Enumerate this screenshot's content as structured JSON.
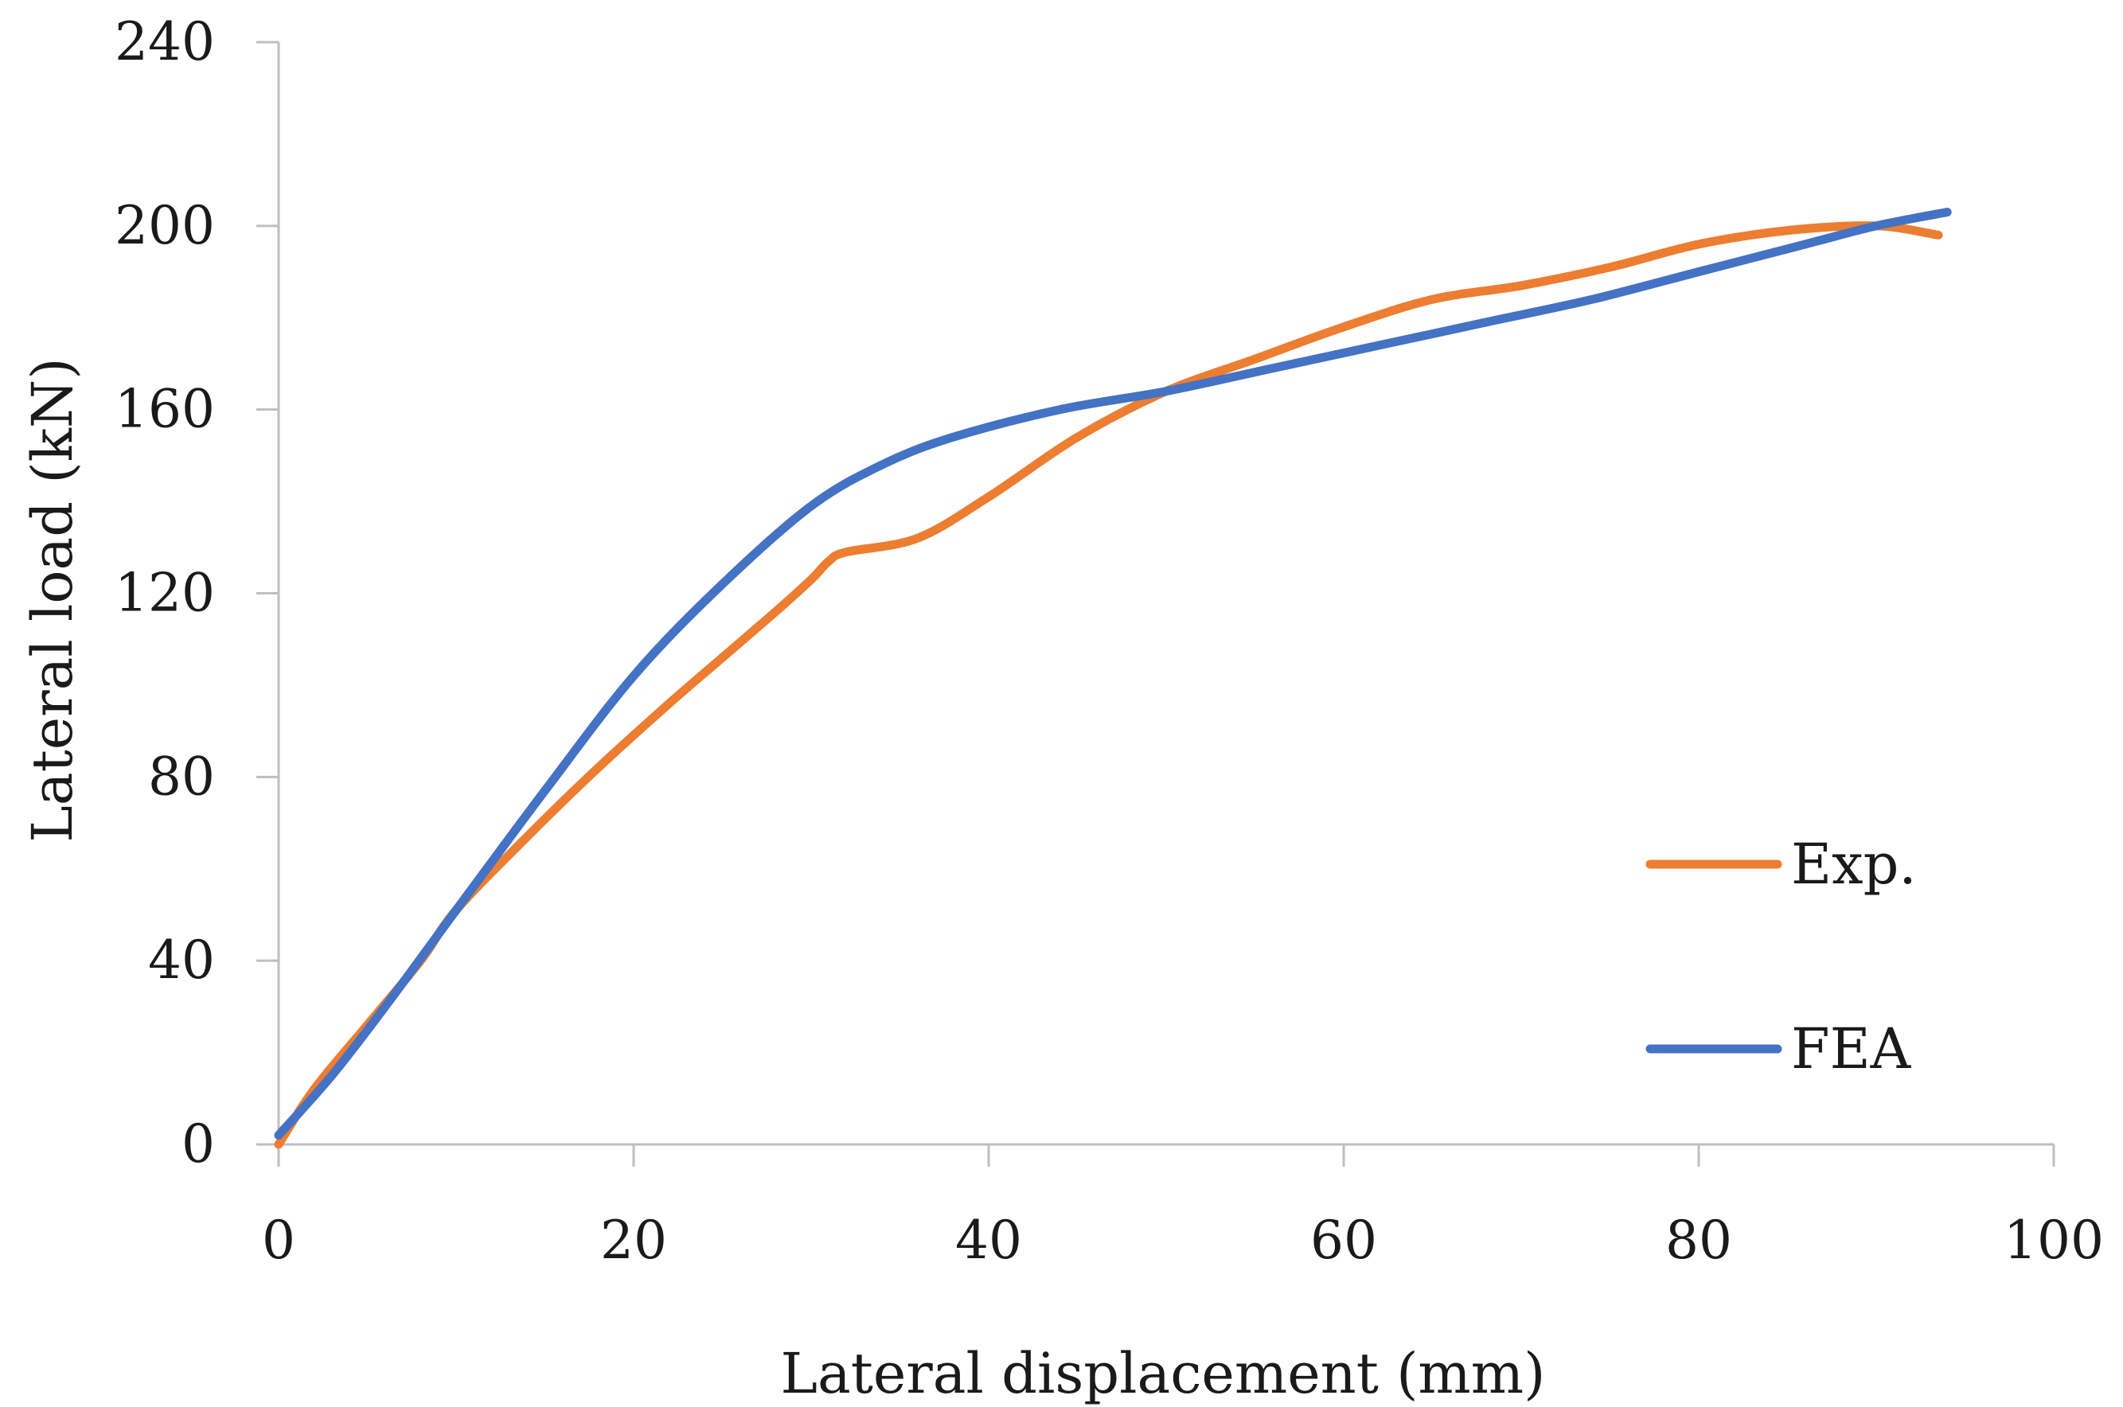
{
  "chart_data": {
    "type": "line",
    "title": "",
    "xlabel": "Lateral displacement (mm)",
    "ylabel": "Lateral load (kN)",
    "xlim": [
      0,
      100
    ],
    "ylim": [
      0,
      240
    ],
    "xticks": [
      0,
      20,
      40,
      60,
      80,
      100
    ],
    "yticks": [
      0,
      40,
      80,
      120,
      160,
      200,
      240
    ],
    "grid": false,
    "legend_position": "right",
    "series": [
      {
        "name": "Exp.",
        "color": "#ed7d31",
        "x": [
          0,
          2,
          5,
          8,
          10,
          14,
          18,
          22,
          25,
          28,
          30,
          31,
          32,
          36,
          40,
          45,
          50,
          55,
          60,
          65,
          70,
          75,
          80,
          85,
          90,
          93.5
        ],
        "y": [
          0,
          12,
          26,
          40,
          51,
          67,
          82,
          96,
          106,
          116,
          123,
          127,
          129,
          132,
          141,
          154,
          164,
          171,
          178,
          184,
          187,
          191,
          196,
          199,
          200,
          198
        ]
      },
      {
        "name": "FEA",
        "color": "#4472c4",
        "x": [
          0,
          3,
          6,
          10,
          15,
          20,
          25,
          30,
          34,
          38,
          44,
          50,
          56,
          62,
          68,
          74,
          80,
          86,
          90,
          94
        ],
        "y": [
          2,
          15,
          30,
          51,
          77,
          102,
          122,
          139,
          148,
          154,
          160,
          164,
          169,
          174,
          179,
          184,
          190,
          196,
          200,
          203
        ]
      }
    ]
  }
}
